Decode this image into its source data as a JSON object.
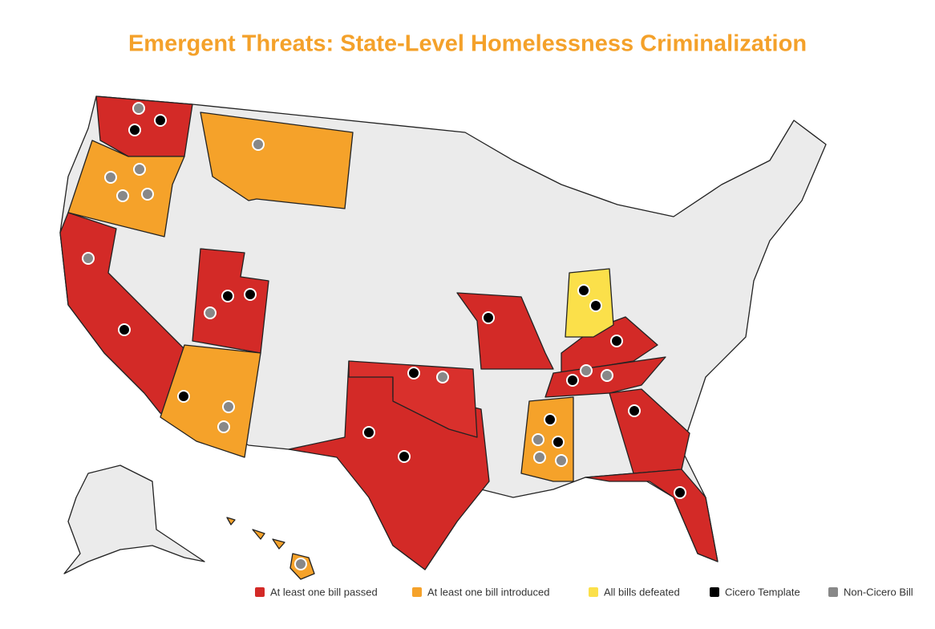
{
  "header": {
    "title": "Emergent Threats: State-Level Homelessness Criminalization"
  },
  "legend": [
    {
      "label": "At least one bill passed",
      "color": "#d32a27"
    },
    {
      "label": "At least one bill introduced",
      "color": "#f5a22a"
    },
    {
      "label": "All bills defeated",
      "color": "#fbe04a"
    },
    {
      "label": "Cicero Template",
      "color": "#000000"
    },
    {
      "label": "Non-Cicero Bill",
      "color": "#888888"
    }
  ]
}
